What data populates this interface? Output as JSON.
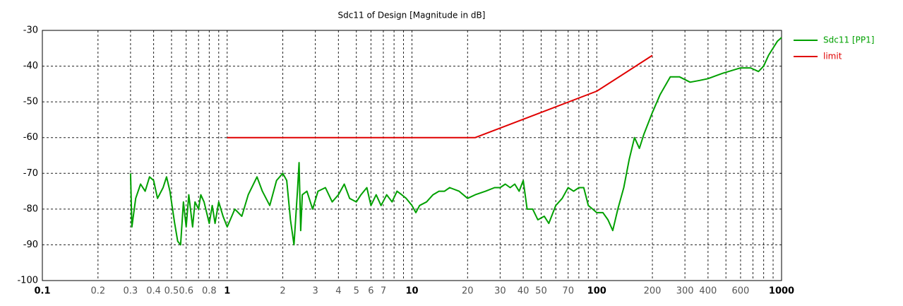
{
  "chart_data": {
    "type": "line",
    "title": "Sdc11 of Design [Magnitude in dB]",
    "x_scale": "log",
    "grid": true,
    "legend": "right",
    "xlim": [
      0.1,
      1000
    ],
    "ylim": [
      -100,
      -30
    ],
    "xticks": [
      0.1,
      0.2,
      0.3,
      0.4,
      0.5,
      0.6,
      0.8,
      1,
      2,
      3,
      4,
      5,
      6,
      7,
      10,
      20,
      30,
      40,
      50,
      70,
      100,
      200,
      300,
      400,
      600,
      1000
    ],
    "minor_xticks": [
      0.7,
      0.9,
      8,
      9,
      60,
      80,
      90,
      500,
      700,
      800,
      900
    ],
    "yticks": [
      -30,
      -40,
      -50,
      -60,
      -70,
      -80,
      -90,
      -100
    ],
    "series": [
      {
        "name": "Sdc11 [PP1]",
        "color": "#00a000",
        "x": [
          0.3,
          0.305,
          0.32,
          0.34,
          0.36,
          0.38,
          0.4,
          0.42,
          0.45,
          0.47,
          0.49,
          0.52,
          0.54,
          0.56,
          0.58,
          0.6,
          0.62,
          0.65,
          0.67,
          0.7,
          0.72,
          0.75,
          0.8,
          0.83,
          0.86,
          0.9,
          0.95,
          1.0,
          1.1,
          1.2,
          1.3,
          1.45,
          1.55,
          1.7,
          1.85,
          2.0,
          2.1,
          2.2,
          2.3,
          2.4,
          2.45,
          2.5,
          2.55,
          2.7,
          2.9,
          3.1,
          3.4,
          3.7,
          4.0,
          4.3,
          4.6,
          5.0,
          5.3,
          5.7,
          6.0,
          6.4,
          6.8,
          7.3,
          7.8,
          8.3,
          8.8,
          9.3,
          10,
          10.5,
          11,
          12,
          13,
          14,
          15,
          16,
          18,
          20,
          22,
          25,
          28,
          30,
          32,
          34,
          36,
          38,
          40,
          42,
          45,
          48,
          52,
          55,
          60,
          65,
          70,
          75,
          80,
          85,
          90,
          95,
          100,
          108,
          115,
          122,
          130,
          140,
          150,
          160,
          170,
          180,
          200,
          220,
          250,
          280,
          320,
          360,
          400,
          480,
          600,
          680,
          750,
          800,
          850,
          950,
          1000
        ],
        "values": [
          -70,
          -85,
          -77,
          -73,
          -75,
          -71,
          -72,
          -77,
          -74,
          -71,
          -75,
          -84,
          -89,
          -90,
          -78,
          -85,
          -76,
          -85,
          -78,
          -80,
          -76,
          -78,
          -84,
          -79,
          -84,
          -78,
          -82,
          -85,
          -80,
          -82,
          -76,
          -71,
          -75,
          -79,
          -72,
          -70,
          -72,
          -83,
          -90,
          -75,
          -67,
          -86,
          -76,
          -75,
          -80,
          -75,
          -74,
          -78,
          -76,
          -73,
          -77,
          -78,
          -76,
          -74,
          -79,
          -76,
          -79,
          -76,
          -78,
          -75,
          -76,
          -77,
          -79,
          -81,
          -79,
          -78,
          -76,
          -75,
          -75,
          -74,
          -75,
          -77,
          -76,
          -75,
          -74,
          -74,
          -73,
          -74,
          -73,
          -75,
          -72,
          -80,
          -80,
          -83,
          -82,
          -84,
          -79,
          -77,
          -74,
          -75,
          -74,
          -74,
          -79,
          -80,
          -81,
          -81,
          -83,
          -86,
          -80,
          -74,
          -66,
          -60,
          -63,
          -59,
          -53,
          -48,
          -43,
          -43,
          -44.5,
          -44,
          -43.5,
          -42,
          -40.5,
          -40.5,
          -41.5,
          -40,
          -37,
          -33,
          -32
        ]
      },
      {
        "name": "limit",
        "color": "#e00000",
        "x": [
          1,
          22,
          100,
          200
        ],
        "values": [
          -60,
          -60,
          -47,
          -37
        ]
      }
    ]
  }
}
